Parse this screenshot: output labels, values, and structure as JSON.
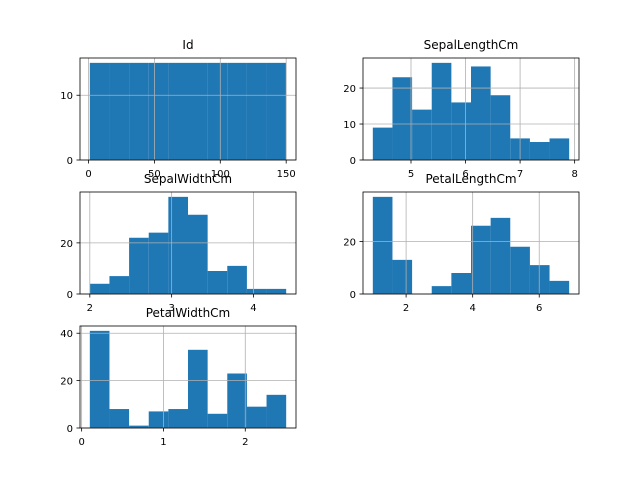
{
  "colors": {
    "bar": "#1f77b4",
    "grid": "#b0b0b0",
    "axis": "#000000"
  },
  "chart_data": [
    {
      "type": "bar",
      "title": "Id",
      "bin_edges": [
        1,
        15.9,
        30.8,
        45.7,
        60.6,
        75.5,
        90.4,
        105.3,
        120.2,
        135.1,
        150
      ],
      "values": [
        15,
        15,
        15,
        15,
        15,
        15,
        15,
        15,
        15,
        15
      ],
      "xlim": [
        -6.45,
        157.45
      ],
      "ylim": [
        0,
        15.75
      ],
      "xticks": [
        0,
        50,
        100,
        150
      ],
      "xtick_labels": [
        "0",
        "50",
        "100",
        "150"
      ],
      "yticks": [
        0,
        10
      ],
      "ytick_labels": [
        "0",
        "10"
      ],
      "grid": true
    },
    {
      "type": "bar",
      "title": "SepalLengthCm",
      "bin_edges": [
        4.3,
        4.66,
        5.02,
        5.38,
        5.74,
        6.1,
        6.46,
        6.82,
        7.18,
        7.54,
        7.9
      ],
      "values": [
        9,
        23,
        14,
        27,
        16,
        26,
        18,
        6,
        5,
        6
      ],
      "xlim": [
        4.12,
        8.08
      ],
      "ylim": [
        0,
        28.35
      ],
      "xticks": [
        5,
        6,
        7,
        8
      ],
      "xtick_labels": [
        "5",
        "6",
        "7",
        "8"
      ],
      "yticks": [
        0,
        10,
        20
      ],
      "ytick_labels": [
        "0",
        "10",
        "20"
      ],
      "grid": true
    },
    {
      "type": "bar",
      "title": "SepalWidthCm",
      "bin_edges": [
        2.0,
        2.24,
        2.48,
        2.72,
        2.96,
        3.2,
        3.44,
        3.68,
        3.92,
        4.16,
        4.4
      ],
      "values": [
        4,
        7,
        22,
        24,
        38,
        31,
        9,
        11,
        2,
        2
      ],
      "xlim": [
        1.88,
        4.52
      ],
      "ylim": [
        0,
        39.9
      ],
      "xticks": [
        2,
        3,
        4
      ],
      "xtick_labels": [
        "2",
        "3",
        "4"
      ],
      "yticks": [
        0,
        20
      ],
      "ytick_labels": [
        "0",
        "20"
      ],
      "grid": true
    },
    {
      "type": "bar",
      "title": "PetalLengthCm",
      "bin_edges": [
        1.0,
        1.59,
        2.18,
        2.77,
        3.36,
        3.95,
        4.54,
        5.13,
        5.72,
        6.31,
        6.9
      ],
      "values": [
        37,
        13,
        0,
        3,
        8,
        26,
        29,
        18,
        11,
        5
      ],
      "xlim": [
        0.705,
        7.195
      ],
      "ylim": [
        0,
        38.85
      ],
      "xticks": [
        2,
        4,
        6
      ],
      "xtick_labels": [
        "2",
        "4",
        "6"
      ],
      "yticks": [
        0,
        20
      ],
      "ytick_labels": [
        "0",
        "20"
      ],
      "grid": true
    },
    {
      "type": "bar",
      "title": "PetalWidthCm",
      "bin_edges": [
        0.1,
        0.34,
        0.58,
        0.82,
        1.06,
        1.3,
        1.54,
        1.78,
        2.02,
        2.26,
        2.5
      ],
      "values": [
        41,
        8,
        1,
        7,
        8,
        33,
        6,
        23,
        9,
        14
      ],
      "xlim": [
        -0.02,
        2.62
      ],
      "ylim": [
        0,
        43.05
      ],
      "xticks": [
        0,
        1,
        2
      ],
      "xtick_labels": [
        "0",
        "1",
        "2"
      ],
      "yticks": [
        0,
        20,
        40
      ],
      "ytick_labels": [
        "0",
        "20",
        "40"
      ],
      "grid": true
    }
  ]
}
